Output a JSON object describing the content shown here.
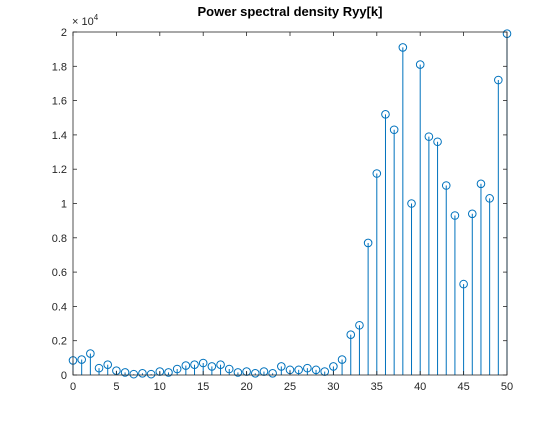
{
  "figure": {
    "title": "Power spectral density Ryy[k]",
    "exponent_label": "× 10",
    "exponent_value": "4"
  },
  "chart_data": {
    "type": "stem",
    "title": "Power spectral density Ryy[k]",
    "xlabel": "",
    "ylabel": "",
    "xlim": [
      0,
      50
    ],
    "ylim": [
      0,
      20000
    ],
    "y_exponent": 4,
    "grid": false,
    "color": "#0072BD",
    "marker": "circle",
    "x_ticks": [
      0,
      5,
      10,
      15,
      20,
      25,
      30,
      35,
      40,
      45,
      50
    ],
    "x_tick_labels": [
      "0",
      "5",
      "10",
      "15",
      "20",
      "25",
      "30",
      "35",
      "40",
      "45",
      "50"
    ],
    "y_ticks": [
      0,
      2000,
      4000,
      6000,
      8000,
      10000,
      12000,
      14000,
      16000,
      18000,
      20000
    ],
    "y_tick_labels": [
      "0",
      "0.2",
      "0.4",
      "0.6",
      "0.8",
      "1",
      "1.2",
      "1.4",
      "1.6",
      "1.8",
      "2"
    ],
    "x": [
      0,
      1,
      2,
      3,
      4,
      5,
      6,
      7,
      8,
      9,
      10,
      11,
      12,
      13,
      14,
      15,
      16,
      17,
      18,
      19,
      20,
      21,
      22,
      23,
      24,
      25,
      26,
      27,
      28,
      29,
      30,
      31,
      32,
      33,
      34,
      35,
      36,
      37,
      38,
      39,
      40,
      41,
      42,
      43,
      44,
      45,
      46,
      47,
      48,
      49,
      50
    ],
    "values": [
      850,
      900,
      1250,
      400,
      600,
      250,
      150,
      50,
      100,
      50,
      200,
      150,
      350,
      550,
      600,
      700,
      500,
      600,
      350,
      150,
      200,
      100,
      200,
      100,
      500,
      300,
      300,
      400,
      300,
      200,
      500,
      900,
      2350,
      2900,
      7700,
      11750,
      15200,
      14300,
      19100,
      10000,
      18100,
      13900,
      13600,
      11050,
      9300,
      5300,
      9400,
      11150,
      10300,
      17200,
      19900
    ]
  }
}
